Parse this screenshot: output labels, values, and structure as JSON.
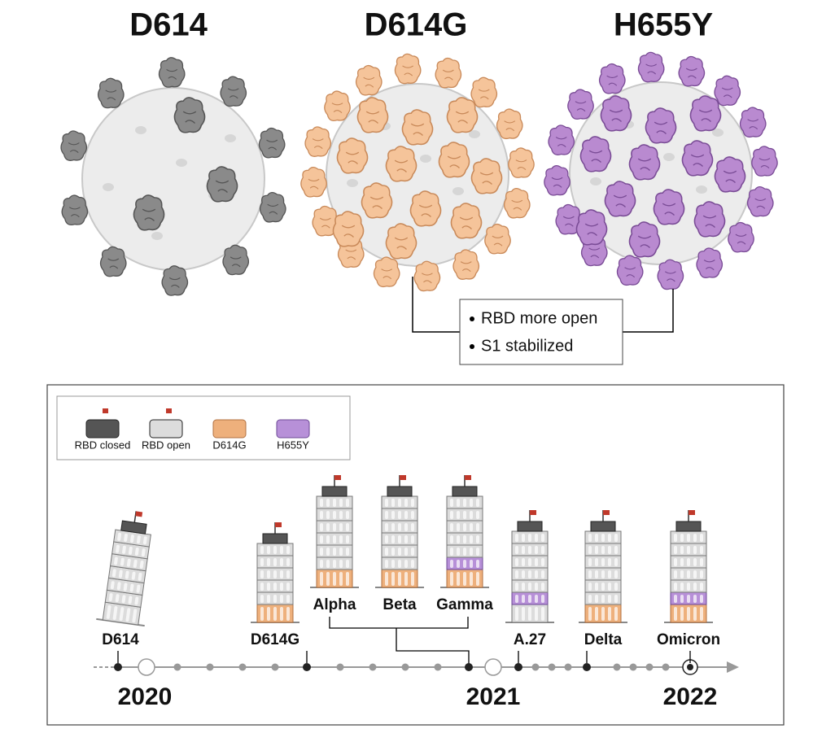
{
  "variants": [
    {
      "label": "D614"
    },
    {
      "label": "D614G"
    },
    {
      "label": "H655Y"
    }
  ],
  "callout": {
    "items": [
      "RBD more open",
      "S1 stabilized"
    ]
  },
  "legend": {
    "items": [
      "RBD closed",
      "RBD open",
      "D614G",
      "H655Y"
    ]
  },
  "timeline": {
    "towers": [
      "D614",
      "D614G",
      "Alpha",
      "Beta",
      "Gamma",
      "A.27",
      "Delta",
      "Omicron"
    ],
    "years": [
      "2020",
      "2021",
      "2022"
    ]
  }
}
